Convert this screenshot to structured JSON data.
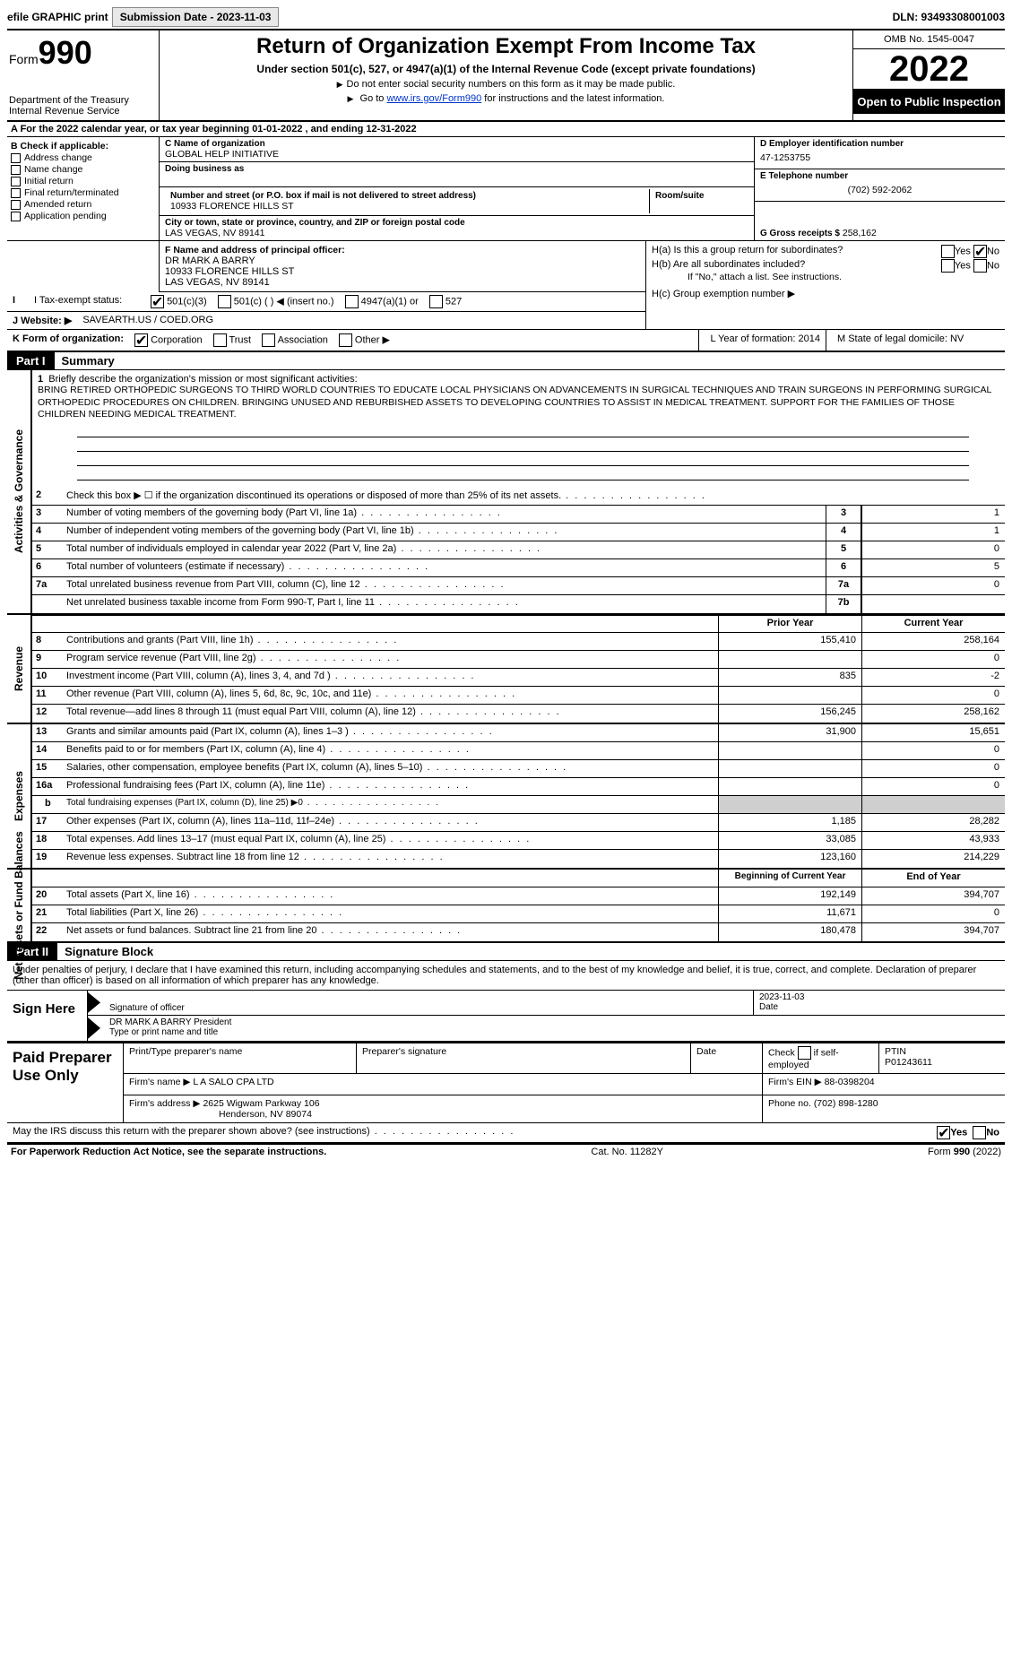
{
  "topbar": {
    "efile_label": "efile GRAPHIC print",
    "submission_label": "Submission Date - 2023-11-03",
    "dln_label": "DLN: 93493308001003"
  },
  "header": {
    "form_prefix": "Form",
    "form_number": "990",
    "dept": "Department of the Treasury",
    "irs": "Internal Revenue Service",
    "title": "Return of Organization Exempt From Income Tax",
    "subtitle": "Under section 501(c), 527, or 4947(a)(1) of the Internal Revenue Code (except private foundations)",
    "note1": "Do not enter social security numbers on this form as it may be made public.",
    "note2_pre": "Go to ",
    "note2_link": "www.irs.gov/Form990",
    "note2_post": " for instructions and the latest information.",
    "omb": "OMB No. 1545-0047",
    "year": "2022",
    "open": "Open to Public Inspection"
  },
  "row_a": "A For the 2022 calendar year, or tax year beginning 01-01-2022    , and ending 12-31-2022",
  "box_b": {
    "label": "B Check if applicable:",
    "items": [
      "Address change",
      "Name change",
      "Initial return",
      "Final return/terminated",
      "Amended return",
      "Application pending"
    ]
  },
  "box_c": {
    "name_label": "C Name of organization",
    "name": "GLOBAL HELP INITIATIVE",
    "dba_label": "Doing business as",
    "addr_label": "Number and street (or P.O. box if mail is not delivered to street address)",
    "room_label": "Room/suite",
    "addr": "10933 FLORENCE HILLS ST",
    "city_label": "City or town, state or province, country, and ZIP or foreign postal code",
    "city": "LAS VEGAS, NV  89141"
  },
  "box_d": {
    "label": "D Employer identification number",
    "value": "47-1253755"
  },
  "box_e": {
    "label": "E Telephone number",
    "value": "(702) 592-2062"
  },
  "box_g": {
    "label": "G Gross receipts $",
    "value": "258,162"
  },
  "box_f": {
    "label": "F  Name and address of principal officer:",
    "name": "DR MARK A BARRY",
    "addr1": "10933 FLORENCE HILLS ST",
    "addr2": "LAS VEGAS, NV  89141"
  },
  "box_h": {
    "ha": "H(a)  Is this a group return for subordinates?",
    "hb": "H(b)  Are all subordinates included?",
    "hb_note": "If \"No,\" attach a list. See instructions.",
    "hc": "H(c)  Group exemption number ▶",
    "yes": "Yes",
    "no": "No"
  },
  "row_i": {
    "label": "I  Tax-exempt status:",
    "o1": "501(c)(3)",
    "o2": "501(c) (  ) ◀ (insert no.)",
    "o3": "4947(a)(1) or",
    "o4": "527"
  },
  "row_j": {
    "label": "J  Website: ▶",
    "value": "SAVEARTH.US / COED.ORG"
  },
  "row_k": {
    "label": "K Form of organization:",
    "o1": "Corporation",
    "o2": "Trust",
    "o3": "Association",
    "o4": "Other ▶",
    "L": "L Year of formation: 2014",
    "M": "M State of legal domicile: NV"
  },
  "part1": {
    "tag": "Part I",
    "title": "Summary"
  },
  "mission": {
    "num": "1",
    "label": "Briefly describe the organization's mission or most significant activities:",
    "text": "BRING RETIRED ORTHOPEDIC SURGEONS TO THIRD WORLD COUNTRIES TO EDUCATE LOCAL PHYSICIANS ON ADVANCEMENTS IN SURGICAL TECHNIQUES AND TRAIN SURGEONS IN PERFORMING SURGICAL ORTHOPEDIC PROCEDURES ON CHILDREN. BRINGING UNUSED AND REBURBISHED ASSETS TO DEVELOPING COUNTRIES TO ASSIST IN MEDICAL TREATMENT. SUPPORT FOR THE FAMILIES OF THOSE CHILDREN NEEDING MEDICAL TREATMENT."
  },
  "gov_lines": [
    {
      "n": "2",
      "t": "Check this box ▶ ☐  if the organization discontinued its operations or disposed of more than 25% of its net assets.",
      "box": "",
      "v": ""
    },
    {
      "n": "3",
      "t": "Number of voting members of the governing body (Part VI, line 1a)",
      "box": "3",
      "v": "1"
    },
    {
      "n": "4",
      "t": "Number of independent voting members of the governing body (Part VI, line 1b)",
      "box": "4",
      "v": "1"
    },
    {
      "n": "5",
      "t": "Total number of individuals employed in calendar year 2022 (Part V, line 2a)",
      "box": "5",
      "v": "0"
    },
    {
      "n": "6",
      "t": "Total number of volunteers (estimate if necessary)",
      "box": "6",
      "v": "5"
    },
    {
      "n": "7a",
      "t": "Total unrelated business revenue from Part VIII, column (C), line 12",
      "box": "7a",
      "v": "0"
    },
    {
      "n": "",
      "t": "Net unrelated business taxable income from Form 990-T, Part I, line 11",
      "box": "7b",
      "v": ""
    }
  ],
  "side_labels": {
    "gov": "Activities & Governance",
    "rev": "Revenue",
    "exp": "Expenses",
    "net": "Net Assets or Fund Balances"
  },
  "col_hdrs": {
    "prior": "Prior Year",
    "curr": "Current Year",
    "beg": "Beginning of Current Year",
    "end": "End of Year"
  },
  "rev_lines": [
    {
      "n": "8",
      "t": "Contributions and grants (Part VIII, line 1h)",
      "p": "155,410",
      "c": "258,164"
    },
    {
      "n": "9",
      "t": "Program service revenue (Part VIII, line 2g)",
      "p": "",
      "c": "0"
    },
    {
      "n": "10",
      "t": "Investment income (Part VIII, column (A), lines 3, 4, and 7d )",
      "p": "835",
      "c": "-2"
    },
    {
      "n": "11",
      "t": "Other revenue (Part VIII, column (A), lines 5, 6d, 8c, 9c, 10c, and 11e)",
      "p": "",
      "c": "0"
    },
    {
      "n": "12",
      "t": "Total revenue—add lines 8 through 11 (must equal Part VIII, column (A), line 12)",
      "p": "156,245",
      "c": "258,162"
    }
  ],
  "exp_lines": [
    {
      "n": "13",
      "t": "Grants and similar amounts paid (Part IX, column (A), lines 1–3 )",
      "p": "31,900",
      "c": "15,651"
    },
    {
      "n": "14",
      "t": "Benefits paid to or for members (Part IX, column (A), line 4)",
      "p": "",
      "c": "0"
    },
    {
      "n": "15",
      "t": "Salaries, other compensation, employee benefits (Part IX, column (A), lines 5–10)",
      "p": "",
      "c": "0"
    },
    {
      "n": "16a",
      "t": "Professional fundraising fees (Part IX, column (A), line 11e)",
      "p": "",
      "c": "0"
    },
    {
      "n": "b",
      "t": "Total fundraising expenses (Part IX, column (D), line 25) ▶0",
      "p": "shade",
      "c": "shade",
      "indent": true,
      "small": true
    },
    {
      "n": "17",
      "t": "Other expenses (Part IX, column (A), lines 11a–11d, 11f–24e)",
      "p": "1,185",
      "c": "28,282"
    },
    {
      "n": "18",
      "t": "Total expenses. Add lines 13–17 (must equal Part IX, column (A), line 25)",
      "p": "33,085",
      "c": "43,933"
    },
    {
      "n": "19",
      "t": "Revenue less expenses. Subtract line 18 from line 12",
      "p": "123,160",
      "c": "214,229"
    }
  ],
  "net_lines": [
    {
      "n": "20",
      "t": "Total assets (Part X, line 16)",
      "p": "192,149",
      "c": "394,707"
    },
    {
      "n": "21",
      "t": "Total liabilities (Part X, line 26)",
      "p": "11,671",
      "c": "0"
    },
    {
      "n": "22",
      "t": "Net assets or fund balances. Subtract line 21 from line 20",
      "p": "180,478",
      "c": "394,707"
    }
  ],
  "part2": {
    "tag": "Part II",
    "title": "Signature Block"
  },
  "sig": {
    "decl": "Under penalties of perjury, I declare that I have examined this return, including accompanying schedules and statements, and to the best of my knowledge and belief, it is true, correct, and complete. Declaration of preparer (other than officer) is based on all information of which preparer has any knowledge.",
    "sign_here": "Sign Here",
    "sig_label": "Signature of officer",
    "date_label": "Date",
    "date": "2023-11-03",
    "name": "DR MARK A BARRY President",
    "name_label": "Type or print name and title"
  },
  "prep": {
    "title": "Paid Preparer Use Only",
    "h1": "Print/Type preparer's name",
    "h2": "Preparer's signature",
    "h3": "Date",
    "h4_pre": "Check",
    "h4_post": "if self-employed",
    "h5": "PTIN",
    "ptin": "P01243611",
    "firm_label": "Firm's name    ▶",
    "firm": "L A SALO CPA LTD",
    "ein_label": "Firm's EIN ▶",
    "ein": "88-0398204",
    "addr_label": "Firm's address ▶",
    "addr1": "2625 Wigwam Parkway 106",
    "addr2": "Henderson, NV  89074",
    "phone_label": "Phone no.",
    "phone": "(702) 898-1280"
  },
  "may": {
    "text": "May the IRS discuss this return with the preparer shown above? (see instructions)",
    "yes": "Yes",
    "no": "No"
  },
  "footer": {
    "left": "For Paperwork Reduction Act Notice, see the separate instructions.",
    "mid": "Cat. No. 11282Y",
    "right": "Form 990 (2022)"
  }
}
